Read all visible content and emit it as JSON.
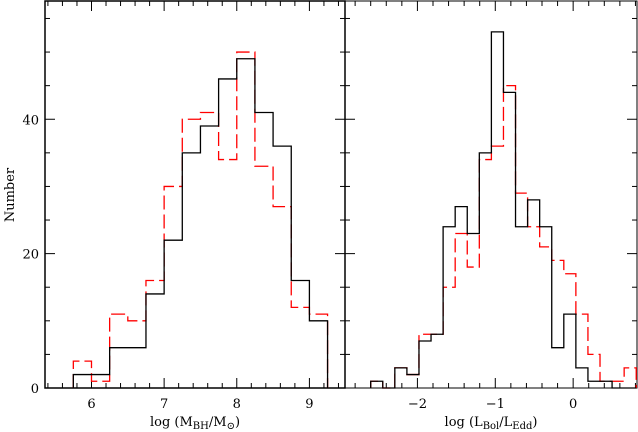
{
  "chart_data": [
    {
      "type": "bar",
      "subtype": "step-histogram",
      "ylabel": "Number",
      "xlabel": {
        "prefix": "log (M",
        "sub1": "BH",
        "mid": "/M",
        "sub2": "⊙",
        "suffix": ")"
      },
      "xlim": [
        5.36,
        9.49
      ],
      "ylim": [
        0,
        57.6
      ],
      "xticks": [
        6,
        7,
        8,
        9
      ],
      "xtick_labels": [
        "6",
        "7",
        "8",
        "9"
      ],
      "xminor": 0.2,
      "yticks": [
        0,
        20,
        40
      ],
      "ytick_labels": [
        "0",
        "20",
        "40"
      ],
      "yminor": 5,
      "bin_start": 5.75,
      "bin_width": 0.25,
      "series": [
        {
          "name": "black",
          "color": "#000000",
          "dashed": false,
          "values": [
            2,
            2,
            6,
            6,
            14,
            22,
            35,
            39,
            46,
            49,
            41,
            36,
            16,
            10
          ]
        },
        {
          "name": "red",
          "color": "#ff0000",
          "dashed": true,
          "values": [
            4,
            1,
            11,
            10,
            16,
            30,
            40,
            41,
            34,
            50,
            33,
            27,
            12,
            11
          ]
        }
      ]
    },
    {
      "type": "bar",
      "subtype": "step-histogram",
      "xlabel": {
        "prefix": "log (L",
        "sub1": "Bol",
        "mid": "/L",
        "sub2": "Edd",
        "suffix": ")"
      },
      "xlim": [
        -2.93,
        0.82
      ],
      "ylim": [
        0,
        57.6
      ],
      "xticks": [
        -2,
        -1,
        0
      ],
      "xtick_labels": [
        "−2",
        "−1",
        "0"
      ],
      "xminor": 0.2,
      "yticks": [
        0,
        20,
        40
      ],
      "yminor": 5,
      "bin_start": -2.6,
      "bin_width": 0.155,
      "series": [
        {
          "name": "black",
          "color": "#000000",
          "dashed": false,
          "values": [
            1,
            0,
            3,
            2,
            7,
            8,
            24,
            27,
            23,
            35,
            53,
            44,
            24,
            28,
            24,
            6,
            11,
            3,
            1,
            1,
            0,
            0
          ]
        },
        {
          "name": "red",
          "color": "#ff0000",
          "dashed": true,
          "values": [
            1,
            0,
            3,
            2,
            8,
            8,
            15,
            23,
            18,
            34,
            36,
            45,
            29,
            24,
            21,
            19,
            17,
            11,
            5,
            1,
            1,
            3
          ]
        }
      ]
    }
  ]
}
